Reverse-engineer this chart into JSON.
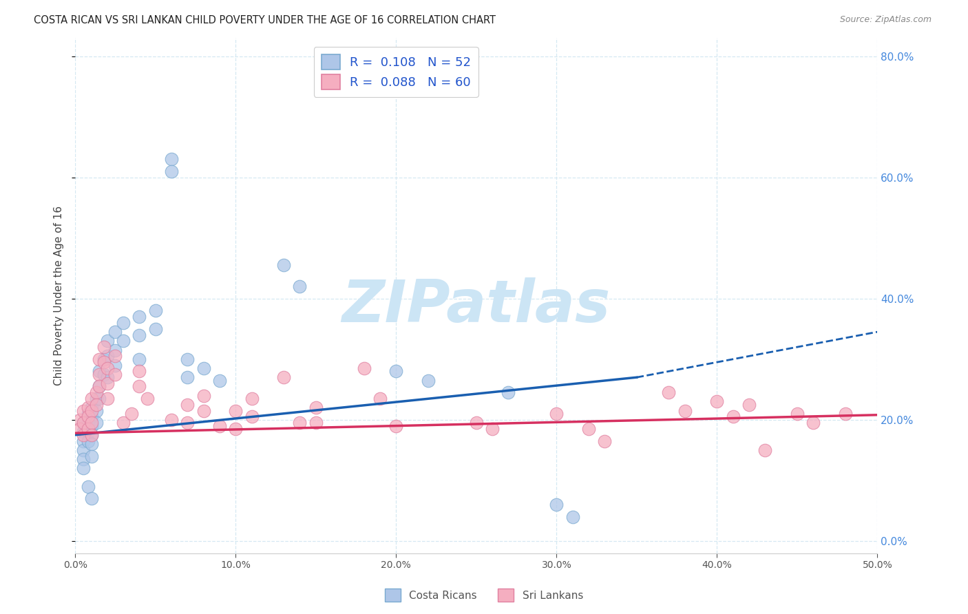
{
  "title": "COSTA RICAN VS SRI LANKAN CHILD POVERTY UNDER THE AGE OF 16 CORRELATION CHART",
  "source": "Source: ZipAtlas.com",
  "ylabel": "Child Poverty Under the Age of 16",
  "xlim": [
    0.0,
    0.5
  ],
  "ylim": [
    -0.02,
    0.83
  ],
  "blue_R": 0.108,
  "blue_N": 52,
  "pink_R": 0.088,
  "pink_N": 60,
  "legend_label_blue": "Costa Ricans",
  "legend_label_pink": "Sri Lankans",
  "blue_color": "#aec6e8",
  "pink_color": "#f5aec0",
  "blue_line_color": "#1a5fb0",
  "pink_line_color": "#d63060",
  "blue_edge": "#7aaad0",
  "pink_edge": "#e080a0",
  "watermark": "ZIPatlas",
  "watermark_color": "#cce5f5",
  "blue_x": [
    0.005,
    0.005,
    0.005,
    0.005,
    0.005,
    0.008,
    0.008,
    0.008,
    0.008,
    0.01,
    0.01,
    0.01,
    0.01,
    0.01,
    0.01,
    0.013,
    0.013,
    0.013,
    0.015,
    0.015,
    0.015,
    0.018,
    0.018,
    0.02,
    0.02,
    0.02,
    0.025,
    0.025,
    0.025,
    0.03,
    0.03,
    0.04,
    0.04,
    0.04,
    0.05,
    0.05,
    0.06,
    0.06,
    0.07,
    0.07,
    0.08,
    0.09,
    0.13,
    0.14,
    0.2,
    0.22,
    0.27,
    0.3,
    0.31,
    0.005,
    0.008,
    0.01
  ],
  "blue_y": [
    0.195,
    0.18,
    0.165,
    0.15,
    0.135,
    0.21,
    0.195,
    0.18,
    0.165,
    0.22,
    0.205,
    0.19,
    0.175,
    0.16,
    0.14,
    0.235,
    0.215,
    0.195,
    0.28,
    0.255,
    0.235,
    0.3,
    0.275,
    0.33,
    0.305,
    0.27,
    0.345,
    0.315,
    0.29,
    0.36,
    0.33,
    0.37,
    0.34,
    0.3,
    0.38,
    0.35,
    0.63,
    0.61,
    0.3,
    0.27,
    0.285,
    0.265,
    0.455,
    0.42,
    0.28,
    0.265,
    0.245,
    0.06,
    0.04,
    0.12,
    0.09,
    0.07
  ],
  "pink_x": [
    0.003,
    0.003,
    0.005,
    0.005,
    0.005,
    0.008,
    0.008,
    0.008,
    0.01,
    0.01,
    0.01,
    0.01,
    0.013,
    0.013,
    0.015,
    0.015,
    0.015,
    0.018,
    0.018,
    0.02,
    0.02,
    0.02,
    0.025,
    0.025,
    0.03,
    0.035,
    0.04,
    0.04,
    0.045,
    0.06,
    0.07,
    0.07,
    0.08,
    0.08,
    0.09,
    0.1,
    0.1,
    0.11,
    0.11,
    0.13,
    0.14,
    0.15,
    0.15,
    0.18,
    0.19,
    0.2,
    0.25,
    0.26,
    0.3,
    0.32,
    0.33,
    0.37,
    0.38,
    0.4,
    0.41,
    0.42,
    0.43,
    0.45,
    0.46,
    0.48
  ],
  "pink_y": [
    0.2,
    0.185,
    0.215,
    0.195,
    0.175,
    0.22,
    0.205,
    0.185,
    0.235,
    0.215,
    0.195,
    0.175,
    0.245,
    0.225,
    0.3,
    0.275,
    0.255,
    0.32,
    0.295,
    0.285,
    0.26,
    0.235,
    0.305,
    0.275,
    0.195,
    0.21,
    0.28,
    0.255,
    0.235,
    0.2,
    0.225,
    0.195,
    0.24,
    0.215,
    0.19,
    0.215,
    0.185,
    0.235,
    0.205,
    0.27,
    0.195,
    0.22,
    0.195,
    0.285,
    0.235,
    0.19,
    0.195,
    0.185,
    0.21,
    0.185,
    0.165,
    0.245,
    0.215,
    0.23,
    0.205,
    0.225,
    0.15,
    0.21,
    0.195,
    0.21
  ],
  "blue_trend_x0": 0.0,
  "blue_trend_y0": 0.175,
  "blue_trend_x1": 0.35,
  "blue_trend_y1": 0.27,
  "blue_trend_x2": 0.5,
  "blue_trend_y2": 0.345,
  "pink_trend_x0": 0.0,
  "pink_trend_y0": 0.178,
  "pink_trend_x1": 0.5,
  "pink_trend_y1": 0.208,
  "grid_color": "#d5e8f2",
  "right_tick_color": "#4488dd",
  "bg_color": "#ffffff",
  "legend_text_color": "#2255cc"
}
